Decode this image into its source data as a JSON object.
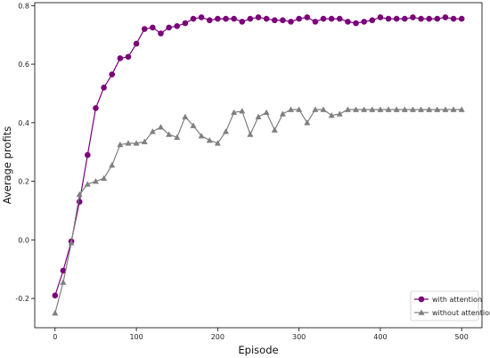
{
  "chart_data": {
    "type": "line",
    "xlabel": "Episode",
    "ylabel": "Average profits",
    "xlim": [
      -25,
      525
    ],
    "ylim": [
      -0.3,
      0.81
    ],
    "xticks": [
      0,
      100,
      200,
      300,
      400,
      500
    ],
    "yticks": [
      -0.2,
      0.0,
      0.2,
      0.4,
      0.6,
      0.8
    ],
    "xtick_labels": [
      "0",
      "100",
      "200",
      "300",
      "400",
      "500"
    ],
    "ytick_labels": [
      "-0.2",
      "0.0",
      "0.2",
      "0.4",
      "0.6",
      "0.8"
    ],
    "grid": false,
    "legend_position": "lower-right",
    "x": [
      0,
      10,
      20,
      30,
      40,
      50,
      60,
      70,
      80,
      90,
      100,
      110,
      120,
      130,
      140,
      150,
      160,
      170,
      180,
      190,
      200,
      210,
      220,
      230,
      240,
      250,
      260,
      270,
      280,
      290,
      300,
      310,
      320,
      330,
      340,
      350,
      360,
      370,
      380,
      390,
      400,
      410,
      420,
      430,
      440,
      450,
      460,
      470,
      480,
      490,
      500
    ],
    "series": [
      {
        "name": "with attention",
        "color": "#7a007a",
        "marker": "circle",
        "values": [
          -0.19,
          -0.105,
          -0.005,
          0.13,
          0.29,
          0.45,
          0.52,
          0.565,
          0.62,
          0.625,
          0.67,
          0.72,
          0.725,
          0.705,
          0.725,
          0.73,
          0.74,
          0.755,
          0.76,
          0.75,
          0.755,
          0.755,
          0.755,
          0.745,
          0.755,
          0.76,
          0.755,
          0.75,
          0.75,
          0.745,
          0.755,
          0.76,
          0.745,
          0.755,
          0.755,
          0.755,
          0.745,
          0.74,
          0.745,
          0.75,
          0.76,
          0.755,
          0.755,
          0.755,
          0.76,
          0.755,
          0.755,
          0.755,
          0.76,
          0.755,
          0.755
        ]
      },
      {
        "name": "without attention",
        "color": "#7f7f7f",
        "marker": "triangle",
        "values": [
          -0.25,
          -0.145,
          -0.01,
          0.155,
          0.19,
          0.2,
          0.21,
          0.255,
          0.325,
          0.33,
          0.33,
          0.335,
          0.37,
          0.385,
          0.36,
          0.35,
          0.42,
          0.39,
          0.355,
          0.34,
          0.33,
          0.37,
          0.435,
          0.44,
          0.36,
          0.42,
          0.435,
          0.375,
          0.43,
          0.445,
          0.445,
          0.4,
          0.445,
          0.445,
          0.425,
          0.43,
          0.445,
          0.445,
          0.445,
          0.445,
          0.445,
          0.445,
          0.445,
          0.445,
          0.445,
          0.445,
          0.445,
          0.445,
          0.445,
          0.445,
          0.445
        ]
      }
    ]
  }
}
